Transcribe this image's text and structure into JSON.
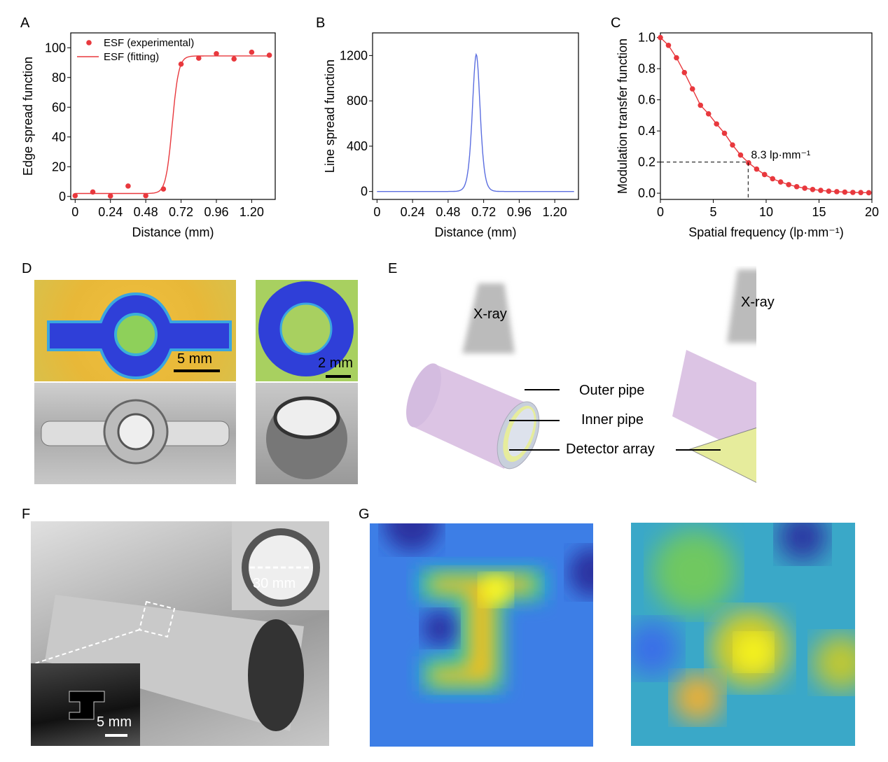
{
  "panels": {
    "a": "A",
    "b": "B",
    "c": "C",
    "d": "D",
    "e": "E",
    "f": "F",
    "g": "G"
  },
  "chart_data": [
    {
      "type": "scatter+line",
      "xlabel": "Distance (mm)",
      "ylabel": "Edge spread function",
      "xticks": [
        "0",
        "0.24",
        "0.48",
        "0.72",
        "0.96",
        "1.20"
      ],
      "yticks": [
        "0",
        "20",
        "40",
        "60",
        "80",
        "100"
      ],
      "xlim": [
        -0.03,
        1.36
      ],
      "ylim": [
        -2,
        110
      ],
      "legend": {
        "placement": "top-left",
        "entries": [
          "ESF (experimental)",
          "ESF (fitting)"
        ]
      },
      "series": [
        {
          "name": "ESF (experimental)",
          "kind": "scatter",
          "x": [
            0,
            0.12,
            0.24,
            0.36,
            0.48,
            0.6,
            0.72,
            0.84,
            0.96,
            1.08,
            1.2,
            1.32
          ],
          "y": [
            0.5,
            3,
            0.3,
            7,
            0.5,
            5,
            89,
            93,
            96,
            92.5,
            97,
            95
          ]
        },
        {
          "name": "ESF (fitting)",
          "kind": "sigmoid",
          "baseline": 2,
          "plateau": 94.5,
          "center": 0.66,
          "width": 0.022,
          "xrange": [
            0,
            1.32
          ]
        }
      ],
      "color": "#e8383d"
    },
    {
      "type": "line",
      "xlabel": "Distance (mm)",
      "ylabel": "Line spread function",
      "xticks": [
        "0",
        "0.24",
        "0.48",
        "0.72",
        "0.96",
        "1.20"
      ],
      "yticks": [
        "0",
        "400",
        "800",
        "1200"
      ],
      "xlim": [
        -0.03,
        1.36
      ],
      "ylim": [
        -70,
        1400
      ],
      "series": [
        {
          "kind": "peak",
          "peak_x": 0.67,
          "peak_y": 1210,
          "width": 0.035,
          "xrange": [
            0,
            1.33
          ]
        }
      ],
      "color": "#5b6ee0"
    },
    {
      "type": "line+scatter",
      "xlabel": "Spatial frequency (lp·mm⁻¹)",
      "ylabel": "Modulation transfer function",
      "xticks": [
        "0",
        "5",
        "10",
        "15",
        "20"
      ],
      "yticks": [
        "0.0",
        "0.2",
        "0.4",
        "0.6",
        "0.8",
        "1.0"
      ],
      "xlim": [
        0,
        20
      ],
      "ylim": [
        -0.04,
        1.03
      ],
      "annotation": {
        "text": "8.3 lp·mm⁻¹",
        "x": 8.3,
        "y": 0.2
      },
      "series": [
        {
          "x": [
            0,
            0.76,
            1.52,
            2.27,
            3.03,
            3.79,
            4.55,
            5.31,
            6.06,
            6.82,
            7.58,
            8.34,
            9.1,
            9.85,
            10.61,
            11.37,
            12.13,
            12.89,
            13.65,
            14.4,
            15.16,
            15.92,
            16.68,
            17.44,
            18.2,
            18.95,
            19.71
          ],
          "y": [
            1.0,
            0.95,
            0.87,
            0.775,
            0.67,
            0.565,
            0.51,
            0.445,
            0.385,
            0.31,
            0.245,
            0.195,
            0.155,
            0.12,
            0.093,
            0.072,
            0.055,
            0.042,
            0.032,
            0.024,
            0.018,
            0.013,
            0.01,
            0.007,
            0.005,
            0.004,
            0.003
          ]
        }
      ],
      "color": "#e8383d"
    }
  ],
  "d": {
    "scale1": "5 mm",
    "scale2": "2 mm"
  },
  "e": {
    "xray": "X-ray",
    "outer": "Outer pipe",
    "inner": "Inner pipe",
    "detector": "Detector array"
  },
  "f": {
    "diameter": "30 mm",
    "scale": "5 mm"
  }
}
